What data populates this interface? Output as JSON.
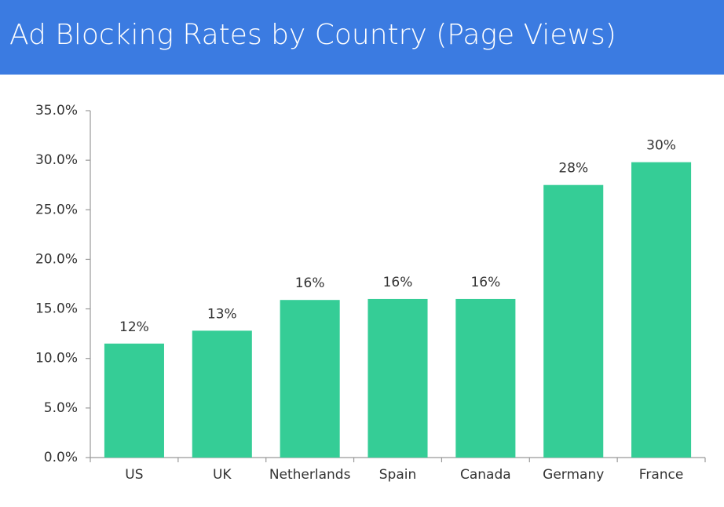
{
  "chart_data": {
    "type": "bar",
    "title": "Ad Blocking Rates by Country (Page Views)",
    "categories": [
      "US",
      "UK",
      "Netherlands",
      "Spain",
      "Canada",
      "Germany",
      "France"
    ],
    "values": [
      11.5,
      12.8,
      15.9,
      16.0,
      16.0,
      27.5,
      29.8
    ],
    "value_labels": [
      "12%",
      "13%",
      "16%",
      "16%",
      "16%",
      "28%",
      "30%"
    ],
    "color": "#35cd96",
    "ylim": [
      0,
      35
    ],
    "yticks": [
      {
        "value": 0,
        "label": "0.0%"
      },
      {
        "value": 5,
        "label": "5.0%"
      },
      {
        "value": 10,
        "label": "10.0%"
      },
      {
        "value": 15,
        "label": "15.0%"
      },
      {
        "value": 20,
        "label": "20.0%"
      },
      {
        "value": 25,
        "label": "25.0%"
      },
      {
        "value": 30,
        "label": "30.0%"
      },
      {
        "value": 35,
        "label": "35.0%"
      }
    ],
    "grid": false
  }
}
